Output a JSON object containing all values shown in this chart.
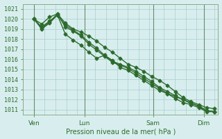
{
  "title": "",
  "xlabel": "Pression niveau de la mer( hPa )",
  "ylabel": "",
  "bg_color": "#d8eeee",
  "grid_color": "#aacccc",
  "line_color": "#2d6b2d",
  "tick_label_color": "#2d6b2d",
  "ylim": [
    1010.5,
    1021.5
  ],
  "xlim": [
    0,
    108
  ],
  "day_labels": [
    "Ven",
    "Lun",
    "Sam",
    "Dim"
  ],
  "day_positions": [
    6,
    34,
    72,
    100
  ],
  "vline_positions": [
    6,
    34,
    72,
    100
  ],
  "minor_vline_positions": [
    6,
    12,
    18,
    24,
    30,
    34,
    40,
    46,
    52,
    58,
    64,
    70,
    72,
    78,
    84,
    90,
    96,
    100,
    106
  ],
  "series": [
    [
      1020.0,
      1019.5,
      1020.2,
      1020.5,
      1019.6,
      1019.0,
      1018.7,
      1018.3,
      1017.8,
      1017.2,
      1016.7,
      1016.1,
      1015.5,
      1015.2,
      1014.8,
      1014.3,
      1013.9,
      1013.4,
      1012.8,
      1012.2,
      1011.8,
      1011.5,
      1011.2,
      1011.1
    ],
    [
      1020.0,
      1019.2,
      1019.8,
      1020.4,
      1019.4,
      1018.9,
      1018.4,
      1017.7,
      1017.1,
      1016.4,
      1015.8,
      1015.5,
      1015.2,
      1014.8,
      1014.3,
      1013.8,
      1013.2,
      1012.8,
      1012.4,
      1012.0,
      1011.7,
      1011.3,
      1010.9,
      1010.8
    ],
    [
      1020.0,
      1019.0,
      1019.6,
      1020.4,
      1018.5,
      1017.9,
      1017.4,
      1016.7,
      1016.1,
      1016.4,
      1015.9,
      1015.2,
      1014.9,
      1014.4,
      1013.9,
      1013.4,
      1012.9,
      1012.6,
      1012.3,
      1012.0,
      1011.6,
      1011.4,
      1010.9,
      1010.8
    ],
    [
      1020.0,
      1019.1,
      1019.7,
      1020.5,
      1019.2,
      1018.8,
      1018.3,
      1017.5,
      1016.9,
      1016.3,
      1015.7,
      1015.4,
      1015.1,
      1014.6,
      1014.1,
      1013.6,
      1013.1,
      1012.6,
      1012.1,
      1011.7,
      1011.5,
      1011.2,
      1010.8,
      1010.8
    ]
  ],
  "n_points": 24,
  "marker": "D",
  "marker_size": 2.5,
  "line_width": 1.0,
  "yticks": [
    1011,
    1012,
    1013,
    1014,
    1015,
    1016,
    1017,
    1018,
    1019,
    1020,
    1021
  ],
  "tick_fontsize": 6,
  "xlabel_fontsize": 7,
  "xtick_fontsize": 6.5
}
